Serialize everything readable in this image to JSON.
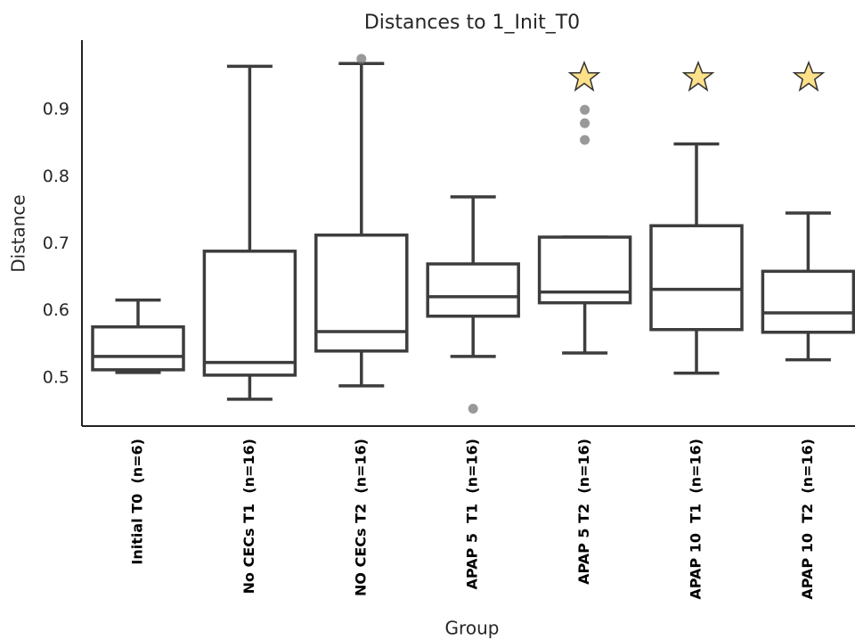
{
  "chart_data": {
    "type": "box",
    "title": "Distances to 1_Init_T0",
    "x_label": "Group",
    "y_label": "Distance",
    "categories": [
      "Initial T0  (n=6)",
      "No CECs T1  (n=16)",
      "NO CECs T2  (n=16)",
      "APAP 5  T1  (n=16)",
      "APAP 5 T2  (n=16)",
      "APAP 10  T1  (n=16)",
      "APAP 10  T2  (n=16)"
    ],
    "boxes": [
      {
        "low": 0.508,
        "q1": 0.512,
        "median": 0.532,
        "q3": 0.576,
        "high": 0.616,
        "outliers": []
      },
      {
        "low": 0.468,
        "q1": 0.504,
        "median": 0.523,
        "q3": 0.689,
        "high": 0.965,
        "outliers": []
      },
      {
        "low": 0.488,
        "q1": 0.54,
        "median": 0.569,
        "q3": 0.713,
        "high": 0.969,
        "outliers": [
          0.976
        ]
      },
      {
        "low": 0.532,
        "q1": 0.592,
        "median": 0.621,
        "q3": 0.67,
        "high": 0.77,
        "outliers": [
          0.454
        ]
      },
      {
        "low": 0.537,
        "q1": 0.612,
        "median": 0.628,
        "q3": 0.71,
        "high": 0.71,
        "outliers": [
          0.9,
          0.88,
          0.855
        ]
      },
      {
        "low": 0.507,
        "q1": 0.572,
        "median": 0.632,
        "q3": 0.727,
        "high": 0.849,
        "outliers": []
      },
      {
        "low": 0.527,
        "q1": 0.568,
        "median": 0.597,
        "q3": 0.659,
        "high": 0.746,
        "outliers": []
      }
    ],
    "color": "#3d3d3d",
    "outlier_color": "#777777",
    "ylim": [
      0.428,
      1.004
    ],
    "yticks": [
      0.5,
      0.6,
      0.7,
      0.8,
      0.9
    ]
  }
}
